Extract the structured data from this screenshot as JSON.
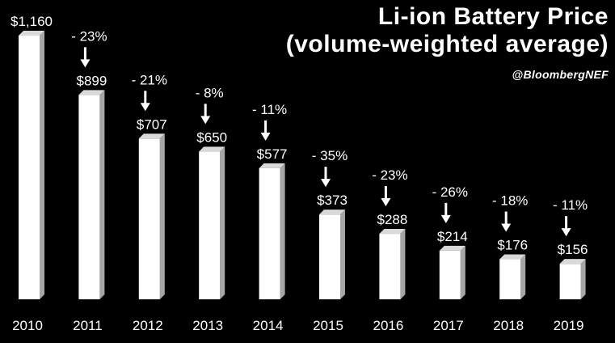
{
  "chart_data": {
    "type": "bar",
    "title_lines": [
      "Li-ion Battery Price",
      "(volume-weighted average)"
    ],
    "source": "@BloombergNEF",
    "categories": [
      "2010",
      "2011",
      "2012",
      "2013",
      "2014",
      "2015",
      "2016",
      "2017",
      "2018",
      "2019"
    ],
    "values": [
      1160,
      899,
      707,
      650,
      577,
      373,
      288,
      214,
      176,
      156
    ],
    "value_labels": [
      "$1,160",
      "$899",
      "$707",
      "$650",
      "$577",
      "$373",
      "$288",
      "$214",
      "$176",
      "$156"
    ],
    "change_labels": [
      "",
      "- 23%",
      "- 21%",
      "- 8%",
      "- 11%",
      "- 35%",
      "- 23%",
      "- 26%",
      "- 18%",
      "- 11%"
    ],
    "ylim": [
      0,
      1160
    ],
    "grid": false,
    "legend": "none",
    "colors": {
      "background": "#000000",
      "bar": "#ffffff",
      "bar_side": "#a6a6a6",
      "text": "#ffffff"
    }
  }
}
